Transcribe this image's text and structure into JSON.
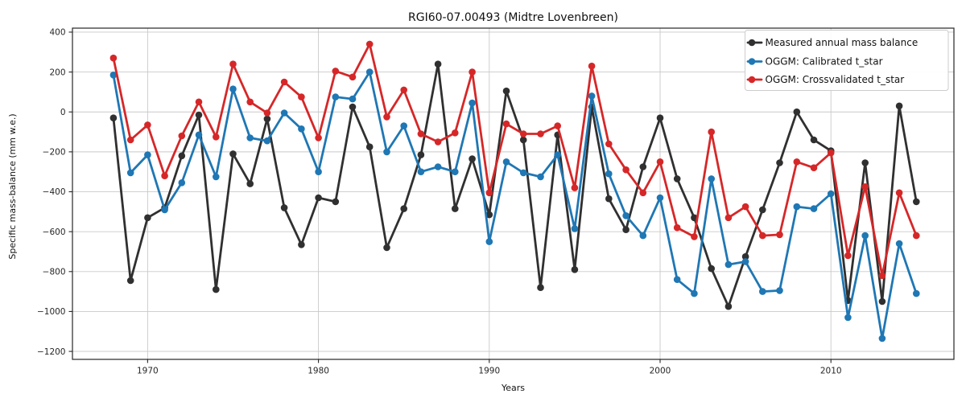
{
  "chart_data": {
    "type": "line",
    "title": "RGI60-07.00493 (Midtre Lovenbreen)",
    "xlabel": "Years",
    "ylabel": "Specific mass-balance (mm w.e.)",
    "xlim": [
      1965.6,
      2017.2
    ],
    "ylim": [
      -1240,
      420
    ],
    "xticks": [
      1970,
      1980,
      1990,
      2000,
      2010
    ],
    "yticks": [
      400,
      200,
      0,
      -200,
      -400,
      -600,
      -800,
      -1000,
      -1200
    ],
    "grid": true,
    "grid_color": "#c9c9c9",
    "spine_color": "#262626",
    "legend_position": "upper right",
    "x": [
      1968,
      1969,
      1970,
      1971,
      1972,
      1973,
      1974,
      1975,
      1976,
      1977,
      1978,
      1979,
      1980,
      1981,
      1982,
      1983,
      1984,
      1985,
      1986,
      1987,
      1988,
      1989,
      1990,
      1991,
      1992,
      1993,
      1994,
      1995,
      1996,
      1997,
      1998,
      1999,
      2000,
      2001,
      2002,
      2003,
      2004,
      2005,
      2006,
      2007,
      2008,
      2009,
      2010,
      2011,
      2012,
      2013,
      2014,
      2015
    ],
    "series": [
      {
        "name": "Measured annual mass balance",
        "color": "#303030",
        "values": [
          -30,
          -845,
          -530,
          -480,
          -220,
          -15,
          -890,
          -210,
          -360,
          -35,
          -480,
          -665,
          -430,
          -450,
          25,
          -175,
          -680,
          -485,
          -215,
          240,
          -485,
          -235,
          -515,
          105,
          -140,
          -880,
          -115,
          -790,
          25,
          -435,
          -590,
          -275,
          -30,
          -335,
          -530,
          -785,
          -975,
          -725,
          -490,
          -255,
          0,
          -140,
          -195,
          -945,
          -255,
          -950,
          30,
          -450
        ]
      },
      {
        "name": "OGGM: Calibrated t_star",
        "color": "#1f77b4",
        "values": [
          185,
          -305,
          -215,
          -490,
          -355,
          -115,
          -325,
          115,
          -130,
          -145,
          -5,
          -85,
          -300,
          75,
          65,
          200,
          -200,
          -70,
          -300,
          -275,
          -300,
          45,
          -650,
          -250,
          -305,
          -325,
          -215,
          -585,
          80,
          -310,
          -520,
          -620,
          -430,
          -840,
          -910,
          -335,
          -765,
          -750,
          -900,
          -895,
          -475,
          -485,
          -410,
          -1030,
          -620,
          -1135,
          -660,
          -910
        ]
      },
      {
        "name": "OGGM: Crossvalidated t_star",
        "color": "#d62728",
        "values": [
          270,
          -140,
          -65,
          -320,
          -120,
          50,
          -125,
          240,
          50,
          -5,
          150,
          75,
          -130,
          205,
          175,
          340,
          -25,
          110,
          -110,
          -150,
          -105,
          200,
          -405,
          -60,
          -110,
          -110,
          -70,
          -380,
          230,
          -160,
          -290,
          -405,
          -250,
          -580,
          -625,
          -100,
          -530,
          -475,
          -620,
          -615,
          -250,
          -280,
          -205,
          -720,
          -375,
          -820,
          -405,
          -620
        ]
      }
    ]
  }
}
